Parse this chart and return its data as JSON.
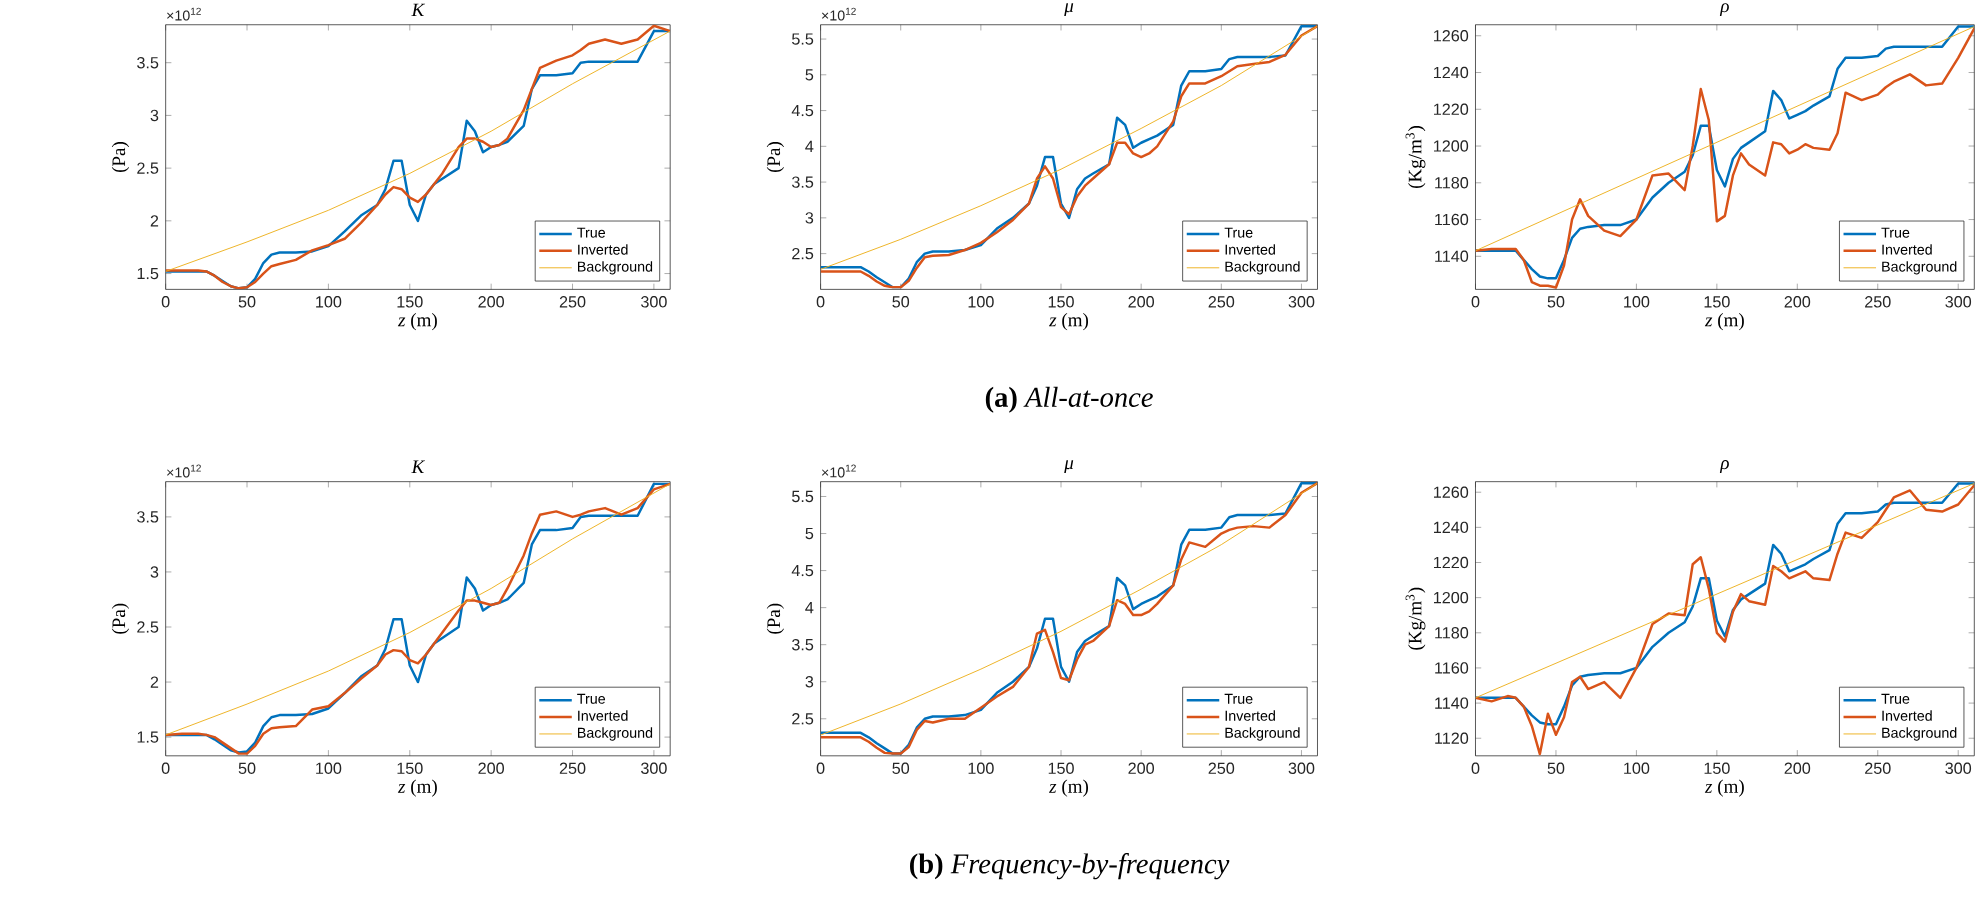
{
  "chart_data": [
    {
      "type": "line",
      "title": "K",
      "xlabel": "*z* (m)",
      "ylabel": "(Pa)",
      "annotations": [
        "×10$^{12}$"
      ],
      "legend": "bottom right",
      "xlim": [
        0,
        310
      ],
      "ylim": [
        1.35,
        3.86
      ],
      "xticks": [
        0,
        50,
        100,
        150,
        200,
        250,
        300
      ],
      "yticks": [
        1.5,
        2,
        2.5,
        3,
        3.5
      ],
      "x": [
        0,
        10,
        20,
        25,
        30,
        35,
        40,
        45,
        50,
        55,
        60,
        65,
        70,
        80,
        90,
        100,
        110,
        120,
        130,
        135,
        140,
        145,
        150,
        155,
        160,
        165,
        170,
        180,
        185,
        190,
        195,
        200,
        205,
        210,
        220,
        225,
        230,
        240,
        250,
        255,
        260,
        270,
        280,
        290,
        300,
        310
      ],
      "series": [
        {
          "name": "True",
          "color": "#0072bd",
          "values": [
            1.52,
            1.52,
            1.52,
            1.52,
            1.48,
            1.43,
            1.38,
            1.36,
            1.37,
            1.45,
            1.6,
            1.68,
            1.7,
            1.7,
            1.71,
            1.76,
            1.9,
            2.05,
            2.15,
            2.3,
            2.57,
            2.57,
            2.15,
            2.0,
            2.25,
            2.35,
            2.4,
            2.5,
            2.95,
            2.85,
            2.65,
            2.7,
            2.72,
            2.75,
            2.9,
            3.25,
            3.38,
            3.38,
            3.4,
            3.5,
            3.51,
            3.51,
            3.51,
            3.51,
            3.8,
            3.8
          ]
        },
        {
          "name": "Inverted",
          "color": "#d95319",
          "values": [
            1.53,
            1.53,
            1.53,
            1.52,
            1.48,
            1.42,
            1.38,
            1.36,
            1.37,
            1.42,
            1.5,
            1.57,
            1.59,
            1.63,
            1.72,
            1.77,
            1.83,
            1.98,
            2.15,
            2.25,
            2.32,
            2.3,
            2.22,
            2.18,
            2.25,
            2.35,
            2.45,
            2.7,
            2.78,
            2.78,
            2.75,
            2.7,
            2.72,
            2.78,
            3.05,
            3.25,
            3.45,
            3.52,
            3.57,
            3.62,
            3.68,
            3.72,
            3.68,
            3.72,
            3.85,
            3.8
          ]
        },
        {
          "name": "Background",
          "color": "#edb120",
          "x": [
            0,
            50,
            100,
            150,
            200,
            250,
            310
          ],
          "values": [
            1.52,
            1.8,
            2.1,
            2.45,
            2.85,
            3.3,
            3.8
          ]
        }
      ]
    },
    {
      "type": "line",
      "title": "μ",
      "xlabel": "*z* (m)",
      "ylabel": "(Pa)",
      "annotations": [
        "×10$^{12}$",
        "**(a)** *All-at-once*"
      ],
      "legend": "bottom right",
      "xlim": [
        0,
        310
      ],
      "ylim": [
        2.0,
        5.7
      ],
      "xticks": [
        0,
        50,
        100,
        150,
        200,
        250,
        300
      ],
      "yticks": [
        2.5,
        3,
        3.5,
        4,
        4.5,
        5,
        5.5
      ],
      "x": [
        0,
        10,
        20,
        25,
        30,
        35,
        40,
        45,
        50,
        55,
        60,
        65,
        70,
        80,
        90,
        100,
        110,
        120,
        130,
        135,
        140,
        145,
        150,
        155,
        160,
        165,
        170,
        180,
        185,
        190,
        195,
        200,
        205,
        210,
        220,
        225,
        230,
        240,
        250,
        255,
        260,
        270,
        280,
        290,
        300,
        310
      ],
      "series": [
        {
          "name": "True",
          "color": "#0072bd",
          "values": [
            2.31,
            2.31,
            2.31,
            2.31,
            2.25,
            2.17,
            2.1,
            2.03,
            2.03,
            2.15,
            2.38,
            2.5,
            2.53,
            2.53,
            2.55,
            2.62,
            2.85,
            3.0,
            3.2,
            3.45,
            3.85,
            3.85,
            3.2,
            3.0,
            3.4,
            3.55,
            3.62,
            3.75,
            4.4,
            4.3,
            3.98,
            4.05,
            4.1,
            4.15,
            4.3,
            4.85,
            5.05,
            5.05,
            5.08,
            5.22,
            5.25,
            5.25,
            5.25,
            5.27,
            5.68,
            5.68
          ]
        },
        {
          "name": "Inverted",
          "color": "#d95319",
          "values": [
            2.25,
            2.25,
            2.25,
            2.25,
            2.19,
            2.11,
            2.05,
            2.03,
            2.03,
            2.12,
            2.3,
            2.45,
            2.47,
            2.48,
            2.55,
            2.65,
            2.8,
            2.97,
            3.2,
            3.55,
            3.72,
            3.55,
            3.15,
            3.05,
            3.3,
            3.45,
            3.55,
            3.75,
            4.05,
            4.05,
            3.9,
            3.85,
            3.9,
            4.0,
            4.35,
            4.7,
            4.88,
            4.88,
            4.98,
            5.05,
            5.12,
            5.15,
            5.18,
            5.28,
            5.55,
            5.68
          ]
        },
        {
          "name": "Background",
          "color": "#edb120",
          "x": [
            0,
            50,
            100,
            150,
            200,
            250,
            310
          ],
          "values": [
            2.28,
            2.7,
            3.17,
            3.68,
            4.25,
            4.85,
            5.68
          ]
        }
      ]
    },
    {
      "type": "line",
      "title": "ρ",
      "xlabel": "*z* (m)",
      "ylabel": "(Kg/m$^{3}$)",
      "legend": "bottom right",
      "xlim": [
        0,
        310
      ],
      "ylim": [
        1122,
        1266
      ],
      "xticks": [
        0,
        50,
        100,
        150,
        200,
        250,
        300
      ],
      "yticks": [
        1140,
        1160,
        1180,
        1200,
        1220,
        1240,
        1260
      ],
      "x": [
        0,
        10,
        20,
        25,
        30,
        35,
        40,
        45,
        50,
        55,
        60,
        65,
        70,
        80,
        90,
        100,
        110,
        120,
        130,
        135,
        140,
        145,
        150,
        155,
        160,
        165,
        170,
        180,
        185,
        190,
        195,
        200,
        205,
        210,
        220,
        225,
        230,
        240,
        250,
        255,
        260,
        270,
        280,
        290,
        300,
        310
      ],
      "series": [
        {
          "name": "True",
          "color": "#0072bd",
          "values": [
            1143,
            1143,
            1143,
            1143,
            1138,
            1133,
            1129,
            1128,
            1128,
            1138,
            1150,
            1155,
            1156,
            1157,
            1157,
            1160,
            1172,
            1180,
            1186,
            1195,
            1211,
            1211,
            1187,
            1178,
            1193,
            1199,
            1202,
            1208,
            1230,
            1225,
            1215,
            1217,
            1219,
            1222,
            1227,
            1242,
            1248,
            1248,
            1249,
            1253,
            1254,
            1254,
            1254,
            1254,
            1265,
            1265
          ]
        },
        {
          "name": "Inverted",
          "color": "#d95319",
          "values": [
            1143,
            1144,
            1144,
            1144,
            1138,
            1126,
            1124,
            1124,
            1123,
            1135,
            1160,
            1171,
            1162,
            1154,
            1151,
            1160,
            1184,
            1185,
            1176,
            1200,
            1231,
            1214,
            1159,
            1162,
            1184,
            1196,
            1190,
            1184,
            1202,
            1201,
            1196,
            1198,
            1201,
            1199,
            1198,
            1207,
            1229,
            1225,
            1228,
            1232,
            1235,
            1239,
            1233,
            1234,
            1248,
            1264
          ]
        },
        {
          "name": "Background",
          "color": "#edb120",
          "x": [
            0,
            310
          ],
          "values": [
            1143,
            1265
          ]
        }
      ]
    },
    {
      "type": "line",
      "title": "K",
      "xlabel": "*z* (m)",
      "ylabel": "(Pa)",
      "annotations": [
        "×10$^{12}$"
      ],
      "legend": "bottom right",
      "xlim": [
        0,
        310
      ],
      "ylim": [
        1.33,
        3.82
      ],
      "xticks": [
        0,
        50,
        100,
        150,
        200,
        250,
        300
      ],
      "yticks": [
        1.5,
        2,
        2.5,
        3,
        3.5
      ],
      "x": [
        0,
        10,
        20,
        25,
        30,
        35,
        40,
        45,
        50,
        55,
        60,
        65,
        70,
        80,
        90,
        100,
        110,
        120,
        130,
        135,
        140,
        145,
        150,
        155,
        160,
        165,
        170,
        180,
        185,
        190,
        195,
        200,
        205,
        210,
        220,
        225,
        230,
        240,
        250,
        255,
        260,
        270,
        280,
        290,
        300,
        310
      ],
      "series": [
        {
          "name": "True",
          "color": "#0072bd",
          "values": [
            1.52,
            1.52,
            1.52,
            1.52,
            1.48,
            1.43,
            1.38,
            1.36,
            1.37,
            1.45,
            1.6,
            1.68,
            1.7,
            1.7,
            1.71,
            1.76,
            1.9,
            2.05,
            2.15,
            2.3,
            2.57,
            2.57,
            2.15,
            2.0,
            2.25,
            2.35,
            2.4,
            2.5,
            2.95,
            2.85,
            2.65,
            2.7,
            2.72,
            2.75,
            2.9,
            3.25,
            3.38,
            3.38,
            3.4,
            3.5,
            3.51,
            3.51,
            3.51,
            3.51,
            3.8,
            3.8
          ]
        },
        {
          "name": "Inverted",
          "color": "#d95319",
          "values": [
            1.52,
            1.53,
            1.53,
            1.52,
            1.5,
            1.45,
            1.4,
            1.35,
            1.35,
            1.42,
            1.53,
            1.58,
            1.59,
            1.6,
            1.75,
            1.78,
            1.9,
            2.03,
            2.15,
            2.25,
            2.29,
            2.28,
            2.2,
            2.17,
            2.25,
            2.35,
            2.45,
            2.65,
            2.74,
            2.74,
            2.72,
            2.7,
            2.72,
            2.85,
            3.15,
            3.35,
            3.52,
            3.55,
            3.5,
            3.52,
            3.55,
            3.58,
            3.52,
            3.58,
            3.75,
            3.8
          ]
        },
        {
          "name": "Background",
          "color": "#edb120",
          "x": [
            0,
            50,
            100,
            150,
            200,
            250,
            310
          ],
          "values": [
            1.52,
            1.8,
            2.1,
            2.45,
            2.85,
            3.3,
            3.8
          ]
        }
      ]
    },
    {
      "type": "line",
      "title": "μ",
      "xlabel": "*z* (m)",
      "ylabel": "(Pa)",
      "annotations": [
        "×10$^{12}$",
        "**(b)** *Frequency-by-frequency*"
      ],
      "legend": "bottom right",
      "xlim": [
        0,
        310
      ],
      "ylim": [
        2.0,
        5.7
      ],
      "xticks": [
        0,
        50,
        100,
        150,
        200,
        250,
        300
      ],
      "yticks": [
        2.5,
        3,
        3.5,
        4,
        4.5,
        5,
        5.5
      ],
      "x": [
        0,
        10,
        20,
        25,
        30,
        35,
        40,
        45,
        50,
        55,
        60,
        65,
        70,
        80,
        90,
        100,
        110,
        120,
        130,
        135,
        140,
        145,
        150,
        155,
        160,
        165,
        170,
        180,
        185,
        190,
        195,
        200,
        205,
        210,
        220,
        225,
        230,
        240,
        250,
        255,
        260,
        270,
        280,
        290,
        300,
        310
      ],
      "series": [
        {
          "name": "True",
          "color": "#0072bd",
          "values": [
            2.31,
            2.31,
            2.31,
            2.31,
            2.25,
            2.17,
            2.1,
            2.03,
            2.03,
            2.15,
            2.38,
            2.5,
            2.53,
            2.53,
            2.55,
            2.62,
            2.85,
            3.0,
            3.2,
            3.45,
            3.85,
            3.85,
            3.2,
            3.0,
            3.4,
            3.55,
            3.62,
            3.75,
            4.4,
            4.3,
            3.98,
            4.05,
            4.1,
            4.15,
            4.3,
            4.85,
            5.05,
            5.05,
            5.08,
            5.22,
            5.25,
            5.25,
            5.25,
            5.27,
            5.68,
            5.68
          ]
        },
        {
          "name": "Inverted",
          "color": "#d95319",
          "values": [
            2.25,
            2.25,
            2.25,
            2.25,
            2.19,
            2.11,
            2.04,
            2.03,
            2.03,
            2.12,
            2.35,
            2.47,
            2.45,
            2.5,
            2.5,
            2.65,
            2.8,
            2.93,
            3.2,
            3.65,
            3.7,
            3.4,
            3.05,
            3.02,
            3.3,
            3.5,
            3.55,
            3.75,
            4.1,
            4.05,
            3.9,
            3.9,
            3.95,
            4.05,
            4.3,
            4.65,
            4.88,
            4.82,
            5.0,
            5.05,
            5.08,
            5.1,
            5.08,
            5.25,
            5.55,
            5.68
          ]
        },
        {
          "name": "Background",
          "color": "#edb120",
          "x": [
            0,
            50,
            100,
            150,
            200,
            250,
            310
          ],
          "values": [
            2.28,
            2.7,
            3.17,
            3.68,
            4.25,
            4.85,
            5.68
          ]
        }
      ]
    },
    {
      "type": "line",
      "title": "ρ",
      "xlabel": "*z* (m)",
      "ylabel": "(Kg/m$^{3}$)",
      "legend": "bottom right",
      "xlim": [
        0,
        310
      ],
      "ylim": [
        1110,
        1266
      ],
      "xticks": [
        0,
        50,
        100,
        150,
        200,
        250,
        300
      ],
      "yticks": [
        1120,
        1140,
        1160,
        1180,
        1200,
        1220,
        1240,
        1260
      ],
      "x": [
        0,
        10,
        20,
        25,
        30,
        35,
        40,
        45,
        50,
        55,
        60,
        65,
        70,
        80,
        90,
        100,
        110,
        120,
        130,
        135,
        140,
        145,
        150,
        155,
        160,
        165,
        170,
        180,
        185,
        190,
        195,
        200,
        205,
        210,
        220,
        225,
        230,
        240,
        250,
        255,
        260,
        270,
        280,
        290,
        300,
        310
      ],
      "series": [
        {
          "name": "True",
          "color": "#0072bd",
          "values": [
            1143,
            1143,
            1143,
            1143,
            1138,
            1133,
            1129,
            1128,
            1128,
            1138,
            1150,
            1155,
            1156,
            1157,
            1157,
            1160,
            1172,
            1180,
            1186,
            1195,
            1211,
            1211,
            1187,
            1178,
            1193,
            1199,
            1202,
            1208,
            1230,
            1225,
            1215,
            1217,
            1219,
            1222,
            1227,
            1242,
            1248,
            1248,
            1249,
            1253,
            1254,
            1254,
            1254,
            1254,
            1265,
            1265
          ]
        },
        {
          "name": "Inverted",
          "color": "#d95319",
          "values": [
            1143,
            1141,
            1144,
            1143,
            1138,
            1127,
            1111,
            1134,
            1122,
            1132,
            1152,
            1155,
            1148,
            1152,
            1143,
            1160,
            1185,
            1191,
            1190,
            1219,
            1223,
            1205,
            1180,
            1175,
            1192,
            1202,
            1198,
            1196,
            1218,
            1215,
            1211,
            1213,
            1215,
            1211,
            1210,
            1225,
            1237,
            1234,
            1243,
            1250,
            1257,
            1261,
            1250,
            1249,
            1253,
            1264
          ]
        },
        {
          "name": "Background",
          "color": "#edb120",
          "x": [
            0,
            310
          ],
          "values": [
            1143,
            1265
          ]
        }
      ]
    }
  ]
}
